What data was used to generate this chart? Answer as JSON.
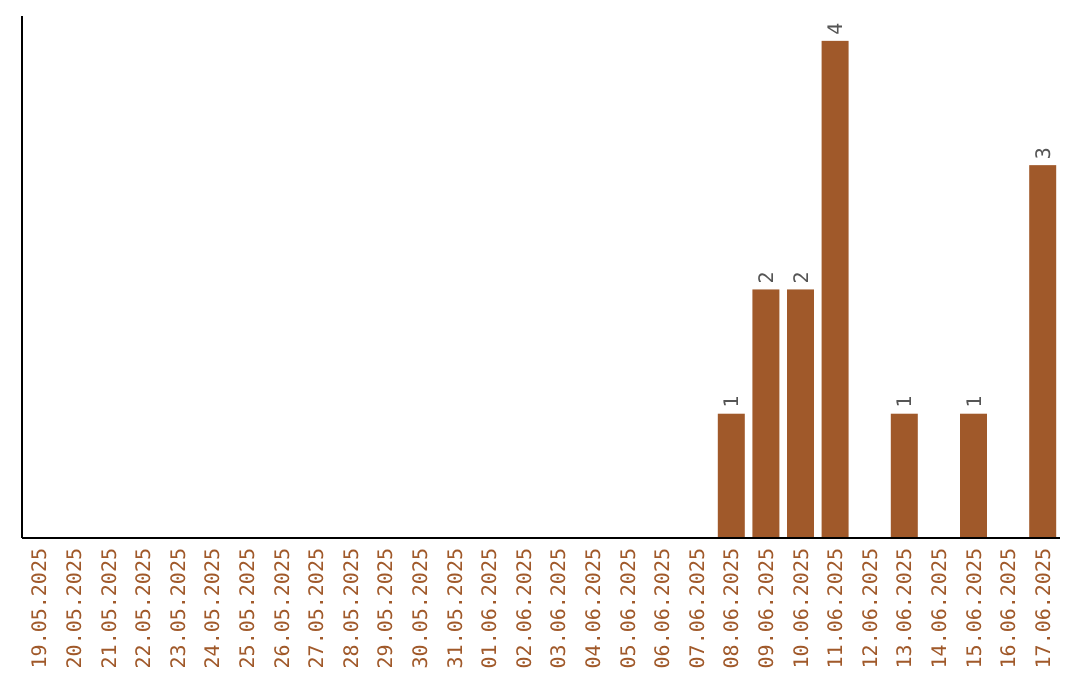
{
  "chart_data": {
    "type": "bar",
    "categories": [
      "19.05.2025",
      "20.05.2025",
      "21.05.2025",
      "22.05.2025",
      "23.05.2025",
      "24.05.2025",
      "25.05.2025",
      "26.05.2025",
      "27.05.2025",
      "28.05.2025",
      "29.05.2025",
      "30.05.2025",
      "31.05.2025",
      "01.06.2025",
      "02.06.2025",
      "03.06.2025",
      "04.06.2025",
      "05.06.2025",
      "06.06.2025",
      "07.06.2025",
      "08.06.2025",
      "09.06.2025",
      "10.06.2025",
      "11.06.2025",
      "12.06.2025",
      "13.06.2025",
      "14.06.2025",
      "15.06.2025",
      "16.06.2025",
      "17.06.2025"
    ],
    "values": [
      null,
      null,
      null,
      null,
      null,
      null,
      null,
      null,
      null,
      null,
      null,
      null,
      null,
      null,
      null,
      null,
      null,
      null,
      null,
      null,
      1,
      2,
      2,
      4,
      null,
      1,
      null,
      1,
      null,
      3
    ],
    "data_labels": true,
    "color": "#a0592a",
    "ylim": [
      0,
      4.2
    ],
    "tick_labels": "x"
  }
}
